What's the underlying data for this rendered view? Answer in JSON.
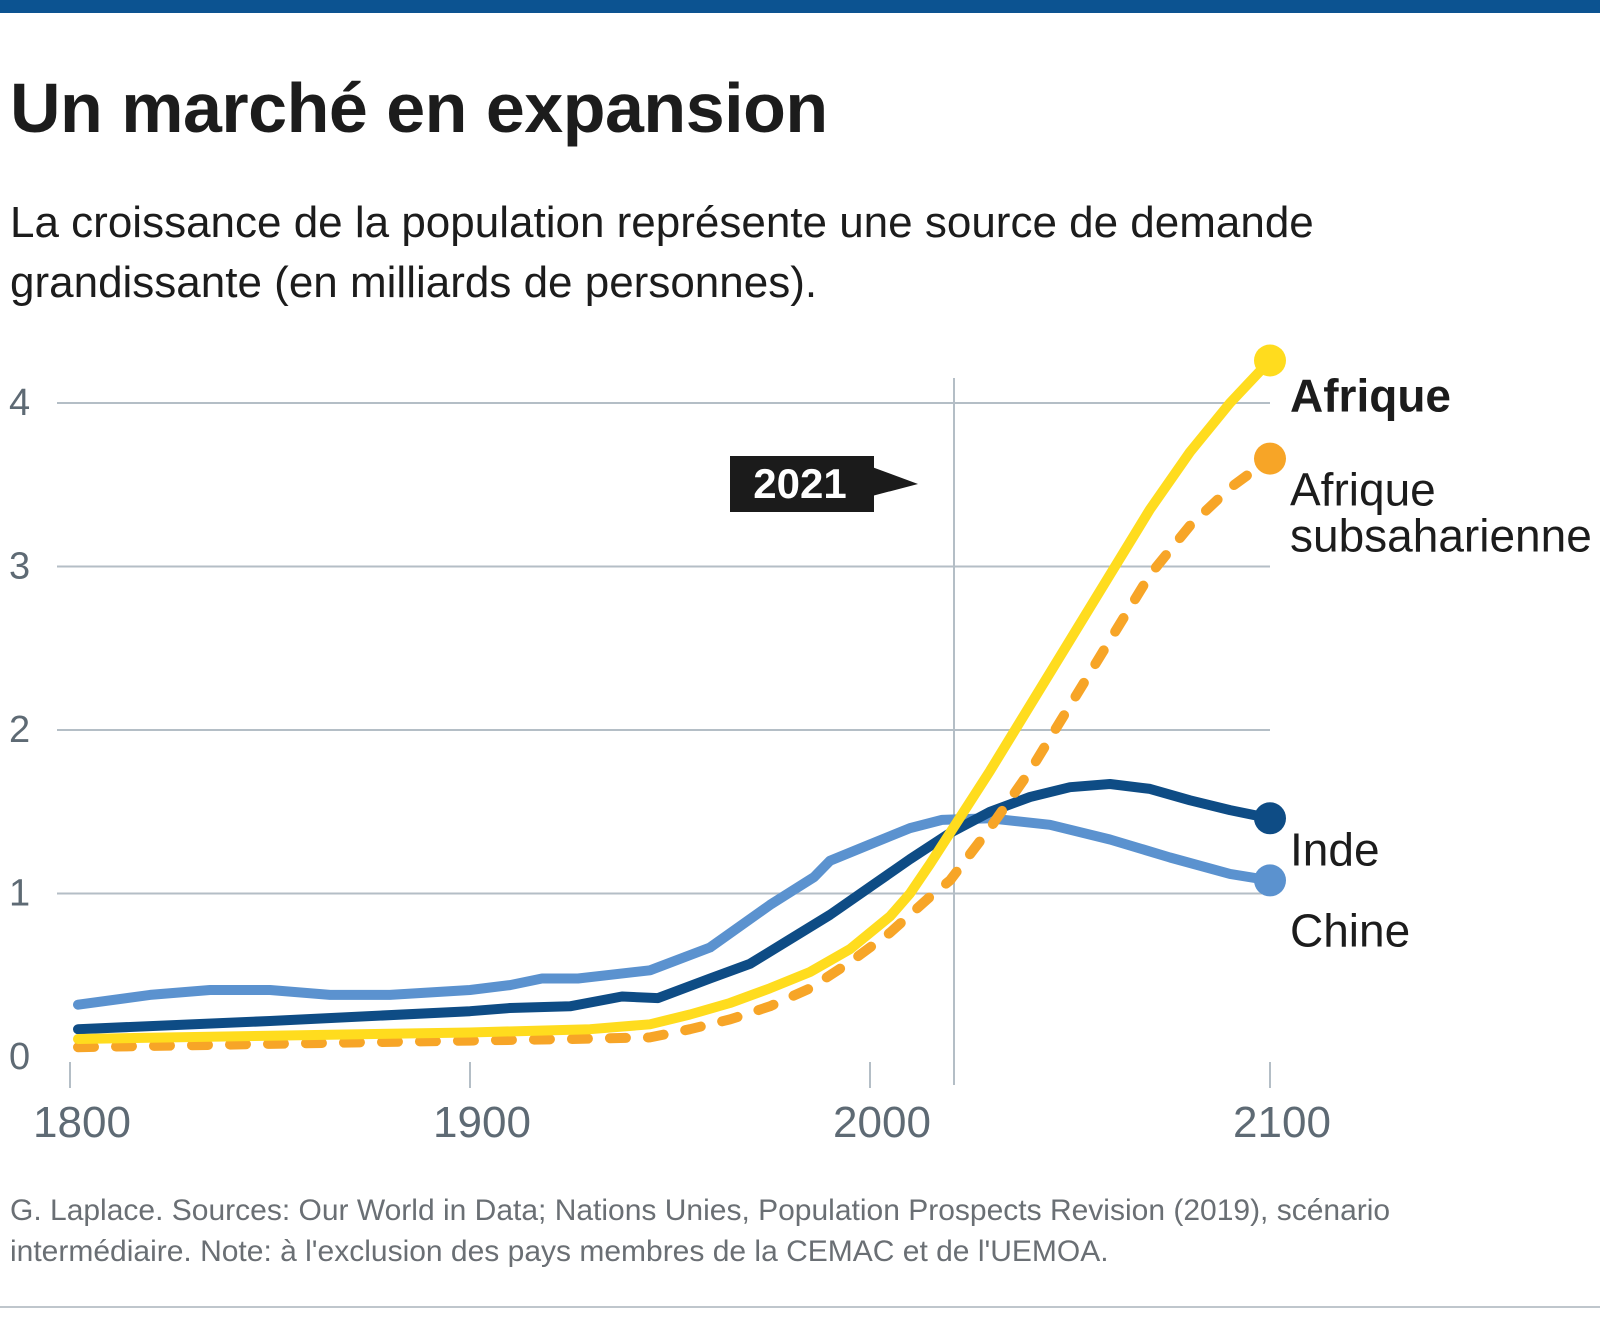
{
  "header": {
    "title": "Un marché en expansion",
    "subtitle": "La croissance de la population représente une source de demande grandissante (en milliards de personnes)."
  },
  "footer": {
    "source": "G. Laplace. Sources: Our World in Data; Nations Unies, Population Prospects Revision (2019), scénario intermédiaire. Note: à l'exclusion des pays membres de la CEMAC et de l'UEMOA."
  },
  "colors": {
    "top_bar": "#0c5391",
    "grid": "#b4bec6",
    "axis_text": "#5e6a74",
    "afrique": "#ffdc1e",
    "afrique_subsaharienne": "#f7a527",
    "inde": "#0e4c85",
    "chine": "#5b92cf",
    "marker_box": "#1b1b1b"
  },
  "chart_data": {
    "type": "line",
    "title": "Un marché en expansion",
    "ylabel": "milliards de personnes",
    "xlim": [
      1800,
      2100
    ],
    "ylim": [
      0,
      4.2
    ],
    "x_ticks": [
      1800,
      1900,
      2000,
      2100
    ],
    "x_tick_labels": [
      "1800",
      "1900",
      "2000",
      "2100"
    ],
    "y_ticks": [
      0,
      1,
      2,
      3,
      4
    ],
    "y_tick_labels": [
      "0",
      "1",
      "2",
      "3",
      "4"
    ],
    "grid": true,
    "annotation": {
      "x": 2021,
      "label": "2021"
    },
    "series": [
      {
        "key": "chine",
        "name": "Chine",
        "color_key": "chine",
        "dashed": false,
        "bold_label": false,
        "x": [
          1802,
          1820,
          1835,
          1850,
          1865,
          1880,
          1900,
          1910,
          1918,
          1927,
          1945,
          1960,
          1975,
          1986,
          1990,
          2000,
          2010,
          2018,
          2030,
          2045,
          2060,
          2075,
          2090,
          2100
        ],
        "y": [
          0.32,
          0.38,
          0.41,
          0.41,
          0.38,
          0.38,
          0.41,
          0.44,
          0.48,
          0.48,
          0.53,
          0.67,
          0.93,
          1.1,
          1.2,
          1.3,
          1.4,
          1.45,
          1.46,
          1.42,
          1.33,
          1.22,
          1.12,
          1.08
        ]
      },
      {
        "key": "inde",
        "name": "Inde",
        "color_key": "inde",
        "dashed": false,
        "bold_label": false,
        "x": [
          1802,
          1850,
          1900,
          1910,
          1925,
          1938,
          1947,
          1960,
          1970,
          1980,
          1990,
          2000,
          2010,
          2020,
          2030,
          2040,
          2050,
          2060,
          2070,
          2080,
          2090,
          2100
        ],
        "y": [
          0.17,
          0.22,
          0.28,
          0.3,
          0.31,
          0.37,
          0.36,
          0.48,
          0.57,
          0.72,
          0.87,
          1.04,
          1.21,
          1.37,
          1.5,
          1.59,
          1.65,
          1.67,
          1.64,
          1.57,
          1.51,
          1.46
        ]
      },
      {
        "key": "afrique_subsaharienne",
        "name": "Afrique subsaharienne",
        "color_key": "afrique_subsaharienne",
        "dashed": true,
        "bold_label": false,
        "x": [
          1802,
          1850,
          1900,
          1925,
          1945,
          1955,
          1965,
          1975,
          1985,
          1995,
          2005,
          2015,
          2020,
          2030,
          2040,
          2050,
          2060,
          2070,
          2080,
          2090,
          2100
        ],
        "y": [
          0.06,
          0.08,
          0.1,
          0.11,
          0.12,
          0.17,
          0.23,
          0.31,
          0.42,
          0.58,
          0.76,
          0.98,
          1.08,
          1.4,
          1.75,
          2.15,
          2.55,
          2.95,
          3.25,
          3.48,
          3.66
        ]
      },
      {
        "key": "afrique",
        "name": "Afrique",
        "color_key": "afrique",
        "dashed": false,
        "bold_label": true,
        "x": [
          1802,
          1850,
          1900,
          1930,
          1945,
          1955,
          1965,
          1975,
          1985,
          1995,
          2005,
          2010,
          2015,
          2020,
          2030,
          2040,
          2050,
          2060,
          2070,
          2080,
          2090,
          2100
        ],
        "y": [
          0.11,
          0.13,
          0.15,
          0.17,
          0.2,
          0.26,
          0.33,
          0.42,
          0.52,
          0.66,
          0.86,
          1.0,
          1.18,
          1.37,
          1.75,
          2.15,
          2.55,
          2.95,
          3.35,
          3.7,
          4.0,
          4.26
        ]
      }
    ]
  }
}
